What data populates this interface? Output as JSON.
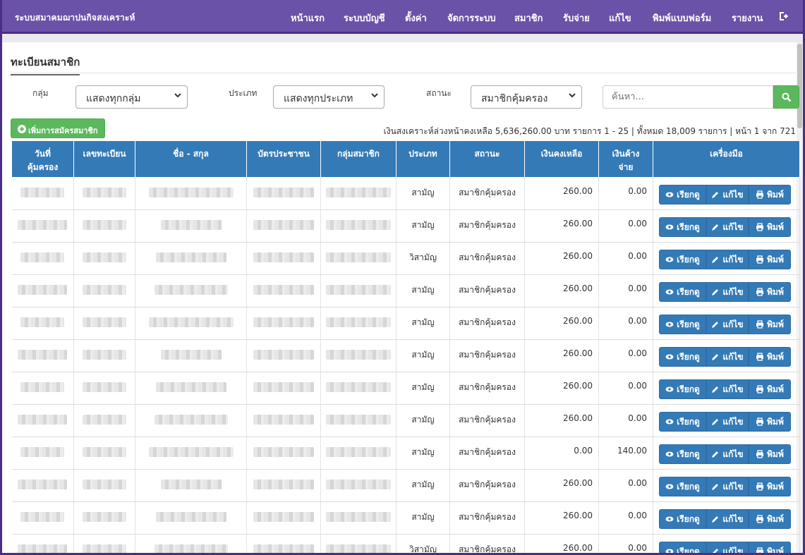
{
  "nav": {
    "brand": "ระบบสมาคมฌาปนกิจสงเคราะห์",
    "items": [
      {
        "label": "หน้าแรก"
      },
      {
        "label": "ระบบบัญชี"
      },
      {
        "label": "ตั้งค่า"
      },
      {
        "label": "จัดการระบบ"
      },
      {
        "label": "สมาชิก"
      },
      {
        "label": "รับจ่าย"
      },
      {
        "label": "แก้ไข"
      },
      {
        "label": "พิมพ์แบบฟอร์ม"
      },
      {
        "label": "รายงาน"
      }
    ],
    "logout_icon": "sign-out-icon"
  },
  "page": {
    "title": "ทะเบียนสมาชิก"
  },
  "filters": {
    "group_label": "กลุ่ม",
    "group_value": "แสดงทุกกลุ่ม",
    "type_label": "ประเภท",
    "type_value": "แสดงทุกประเภท",
    "status_label": "สถานะ",
    "status_value": "สมาชิกคุ้มครอง",
    "search_placeholder": "ค้นหา...",
    "search_icon": "search-icon"
  },
  "toolbar": {
    "add_label": "เพิ่มการสมัครสมาชิก",
    "summary": "เงินสงเคราะห์ล่วงหน้าคงเหลือ 5,636,260.00 บาท  รายการ 1 - 25 | ทั้งหมด 18,009 รายการ | หน้า 1 จาก 721"
  },
  "table": {
    "headers": [
      "วันที่\nคุ้มครอง",
      "เลขทะเบียน",
      "ชื่อ - สกุล",
      "บัตรประชาชน",
      "กลุ่มสมาชิก",
      "ประเภท",
      "สถานะ",
      "เงินคงเหลือ",
      "เงินค้าง\nจ่าย",
      "เครื่องมือ"
    ],
    "row_buttons": {
      "view": "เรียกดู",
      "edit": "แก้ไข",
      "print": "พิมพ์"
    },
    "rows": [
      {
        "type": "สามัญ",
        "status": "สมาชิกคุ้มครอง",
        "balance": "260.00",
        "owed": "0.00"
      },
      {
        "type": "สามัญ",
        "status": "สมาชิกคุ้มครอง",
        "balance": "260.00",
        "owed": "0.00"
      },
      {
        "type": "วิสามัญ",
        "status": "สมาชิกคุ้มครอง",
        "balance": "260.00",
        "owed": "0.00"
      },
      {
        "type": "สามัญ",
        "status": "สมาชิกคุ้มครอง",
        "balance": "260.00",
        "owed": "0.00"
      },
      {
        "type": "สามัญ",
        "status": "สมาชิกคุ้มครอง",
        "balance": "260.00",
        "owed": "0.00"
      },
      {
        "type": "สามัญ",
        "status": "สมาชิกคุ้มครอง",
        "balance": "260.00",
        "owed": "0.00"
      },
      {
        "type": "สามัญ",
        "status": "สมาชิกคุ้มครอง",
        "balance": "260.00",
        "owed": "0.00"
      },
      {
        "type": "สามัญ",
        "status": "สมาชิกคุ้มครอง",
        "balance": "260.00",
        "owed": "0.00"
      },
      {
        "type": "สามัญ",
        "status": "สมาชิกคุ้มครอง",
        "balance": "0.00",
        "owed": "140.00"
      },
      {
        "type": "สามัญ",
        "status": "สมาชิกคุ้มครอง",
        "balance": "260.00",
        "owed": "0.00"
      },
      {
        "type": "สามัญ",
        "status": "สมาชิกคุ้มครอง",
        "balance": "260.00",
        "owed": "0.00"
      },
      {
        "type": "วิสามัญ",
        "status": "สมาชิกคุ้มครอง",
        "balance": "260.00",
        "owed": "0.00"
      }
    ]
  },
  "colors": {
    "navbar": "#6a52a8",
    "frame": "#4b2e86",
    "primary": "#337ab7",
    "success": "#5cb85c"
  }
}
